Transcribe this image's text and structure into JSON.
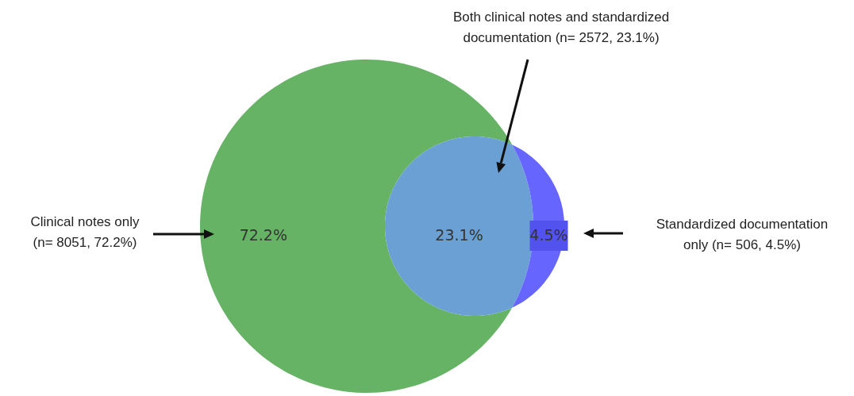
{
  "chart_data": {
    "type": "other",
    "categories": [
      null,
      null,
      null
    ],
    "values": [
      72.2,
      23.1,
      4.5
    ],
    "colors": [
      "#66b366",
      "#6aa0d4",
      "#6666ff"
    ],
    "value_labels": [
      "72.2%",
      "23.1%",
      "4.5%"
    ],
    "annotations": [
      "Clinical notes only\n(n= 8051, 72.2%)",
      "Both clinical notes and standardized\ndocumentation (n= 2572, 23.1%)",
      "Standardized documentation\nonly (n= 506, 4.5%)"
    ]
  }
}
